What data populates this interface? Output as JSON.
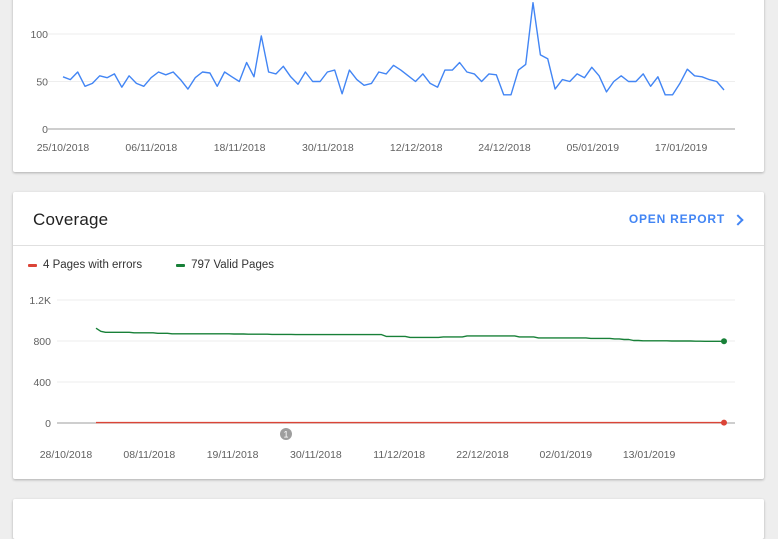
{
  "chart_data": [
    {
      "type": "line",
      "title": "",
      "xlabel": "",
      "ylabel": "",
      "x_tick_labels": [
        "25/10/2018",
        "06/11/2018",
        "18/11/2018",
        "30/11/2018",
        "12/12/2018",
        "24/12/2018",
        "05/01/2019",
        "17/01/2019"
      ],
      "y_ticks": [
        0,
        50,
        100
      ],
      "y_tick_labels": [
        "0",
        "50",
        "100"
      ],
      "ylim": [
        0,
        140
      ],
      "grid": true,
      "series": [
        {
          "color": "#4285f4",
          "values": [
            55,
            52,
            60,
            45,
            48,
            56,
            54,
            58,
            44,
            56,
            48,
            45,
            54,
            60,
            57,
            60,
            52,
            42,
            54,
            60,
            59,
            45,
            60,
            55,
            50,
            70,
            55,
            98,
            60,
            58,
            66,
            55,
            47,
            60,
            50,
            50,
            60,
            62,
            37,
            62,
            52,
            46,
            48,
            60,
            58,
            67,
            62,
            56,
            50,
            58,
            48,
            44,
            62,
            62,
            70,
            60,
            58,
            50,
            58,
            57,
            36,
            36,
            62,
            68,
            133,
            78,
            74,
            42,
            52,
            50,
            58,
            54,
            65,
            56,
            39,
            50,
            56,
            50,
            50,
            58,
            45,
            55,
            36,
            36,
            48,
            63,
            56,
            55,
            52,
            50,
            41
          ]
        }
      ]
    },
    {
      "type": "line",
      "title": "Coverage",
      "xlabel": "",
      "ylabel": "",
      "x_tick_labels": [
        "28/10/2018",
        "08/11/2018",
        "19/11/2018",
        "30/11/2018",
        "11/12/2018",
        "22/12/2018",
        "02/01/2019",
        "13/01/2019"
      ],
      "y_ticks": [
        0,
        400,
        800,
        1200
      ],
      "y_tick_labels": [
        "0",
        "400",
        "800",
        "1.2K"
      ],
      "ylim": [
        0,
        1200
      ],
      "grid": true,
      "legend_placement": "top-left",
      "series": [
        {
          "name": "4 Pages with errors",
          "color": "#db4437",
          "values": [
            4,
            4,
            4,
            4,
            4,
            4,
            4,
            4,
            4,
            4,
            4,
            4,
            4,
            4,
            4,
            4,
            4,
            4,
            4,
            4,
            4,
            4,
            4,
            4,
            4,
            4,
            4,
            4,
            4,
            4,
            4,
            4,
            4,
            4,
            4,
            4,
            4,
            4,
            4,
            4,
            4,
            4,
            4,
            4,
            4,
            4,
            4,
            4,
            4,
            4,
            4,
            4,
            4,
            4,
            4,
            4,
            4,
            4,
            4,
            4,
            4,
            4,
            4,
            4,
            4,
            4,
            4,
            4,
            4,
            4,
            4,
            4,
            4,
            4,
            4,
            4,
            4,
            4,
            4,
            4,
            4,
            4,
            4,
            4,
            4,
            4,
            4,
            4,
            4
          ]
        },
        {
          "name": "797 Valid Pages",
          "color": "#188038",
          "values": [
            925,
            895,
            885,
            885,
            885,
            885,
            885,
            885,
            880,
            880,
            880,
            880,
            880,
            875,
            875,
            875,
            870,
            870,
            870,
            870,
            870,
            870,
            870,
            870,
            870,
            870,
            870,
            870,
            870,
            868,
            868,
            868,
            866,
            866,
            866,
            866,
            866,
            864,
            864,
            864,
            864,
            864,
            862,
            862,
            862,
            862,
            862,
            862,
            862,
            862,
            862,
            862,
            862,
            862,
            862,
            862,
            862,
            862,
            862,
            862,
            862,
            845,
            845,
            845,
            845,
            845,
            835,
            835,
            835,
            835,
            835,
            835,
            835,
            840,
            840,
            840,
            840,
            840,
            850,
            850,
            850,
            850,
            850,
            850,
            850,
            850,
            850,
            850,
            850,
            840,
            840,
            840,
            840,
            830,
            830,
            830,
            830,
            830,
            830,
            830,
            830,
            830,
            830,
            830,
            825,
            825,
            825,
            825,
            825,
            820,
            820,
            815,
            815,
            805,
            805,
            802,
            802,
            802,
            802,
            802,
            802,
            800,
            800,
            800,
            800,
            800,
            798,
            798,
            797,
            797,
            797,
            797,
            797
          ]
        }
      ]
    }
  ],
  "coverage": {
    "title": "Coverage",
    "open_report_label": "OPEN REPORT",
    "legend": [
      {
        "label": "4 Pages with errors",
        "color": "#db4437"
      },
      {
        "label": "797 Valid Pages",
        "color": "#188038"
      }
    ],
    "annotation_label": "1",
    "chevron_icon": "chevron-right-icon"
  },
  "colors": {
    "accent": "#4285f4",
    "errors": "#db4437",
    "valid": "#188038",
    "grid": "#eeeeee",
    "axis_text": "#616161"
  }
}
